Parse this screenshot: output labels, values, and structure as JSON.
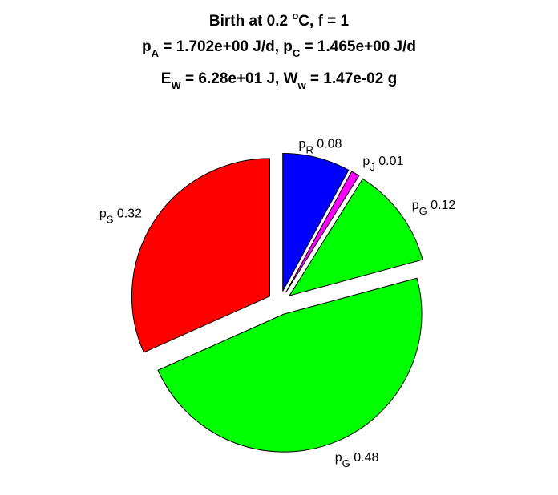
{
  "title": {
    "line1": {
      "pre": "Birth at 0.2 ",
      "sup": "o",
      "post": "C, f = 1"
    },
    "line2": [
      {
        "base": "p",
        "sub": "A",
        "rest": " = 1.702e+00 J/d, "
      },
      {
        "base": "p",
        "sub": "C",
        "rest": " = 1.465e+00 J/d"
      }
    ],
    "line3": [
      {
        "base": "E",
        "sub": "W",
        "rest": " = 6.28e+01 J, "
      },
      {
        "base": "W",
        "sub": "w",
        "rest": " = 1.47e-02 g"
      }
    ]
  },
  "chart_data": {
    "type": "pie",
    "exploded": true,
    "direction": "clockwise",
    "start_angle": "12 o'clock",
    "slices": [
      {
        "base": "p",
        "sub": "R",
        "value": 0.08,
        "label": "0.08",
        "color": "#0000ff"
      },
      {
        "base": "p",
        "sub": "J",
        "value": 0.01,
        "label": "0.01",
        "color": "#ff00ff"
      },
      {
        "base": "p",
        "sub": "G",
        "value": 0.12,
        "label": "0.12",
        "color": "#00ff00"
      },
      {
        "base": "p",
        "sub": "G",
        "value": 0.48,
        "label": "0.48",
        "color": "#00ff00"
      },
      {
        "base": "p",
        "sub": "S",
        "value": 0.32,
        "label": "0.32",
        "color": "#ff0000"
      }
    ]
  }
}
